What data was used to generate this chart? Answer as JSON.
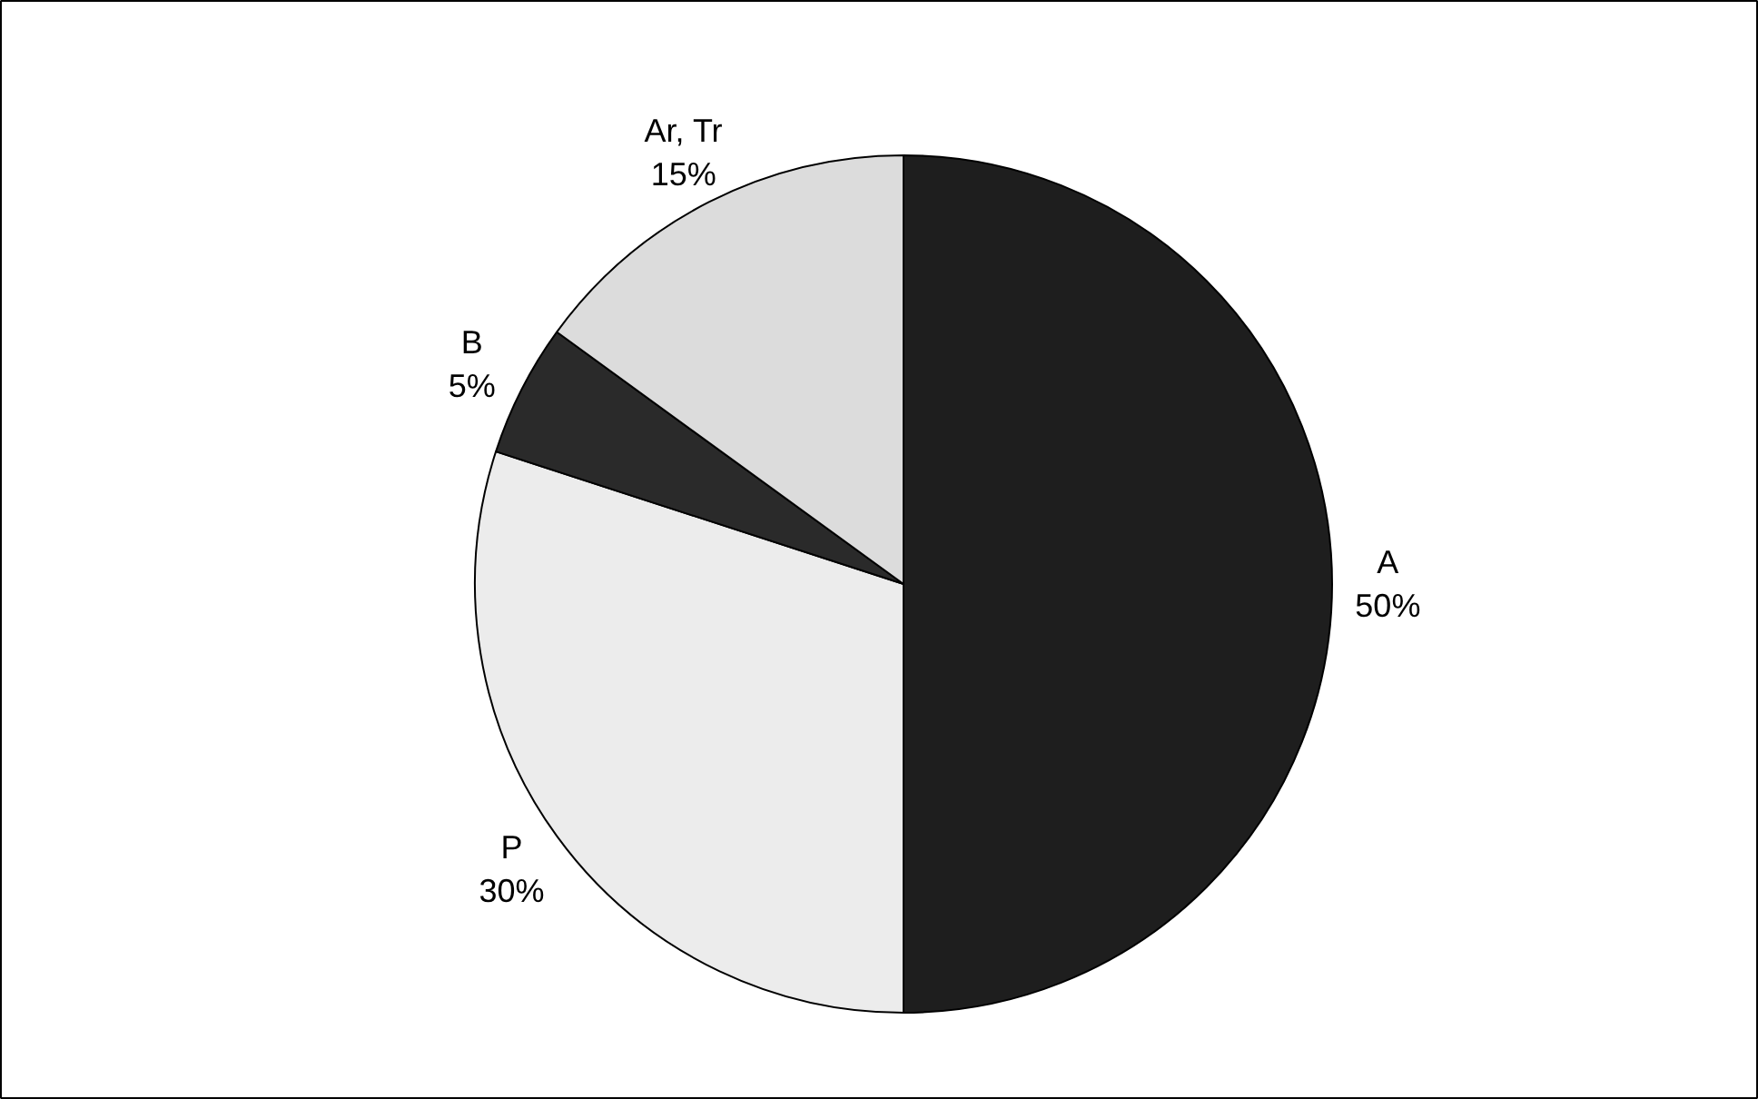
{
  "chart_data": {
    "type": "pie",
    "categories": [
      "A",
      "P",
      "B",
      "Ar, Tr"
    ],
    "values": [
      50,
      30,
      5,
      15
    ],
    "value_labels": [
      "50%",
      "30%",
      "5%",
      "15%"
    ],
    "colors": [
      "#1e1e1e",
      "#ececec",
      "#2a2a2a",
      "#dcdcdc"
    ]
  }
}
